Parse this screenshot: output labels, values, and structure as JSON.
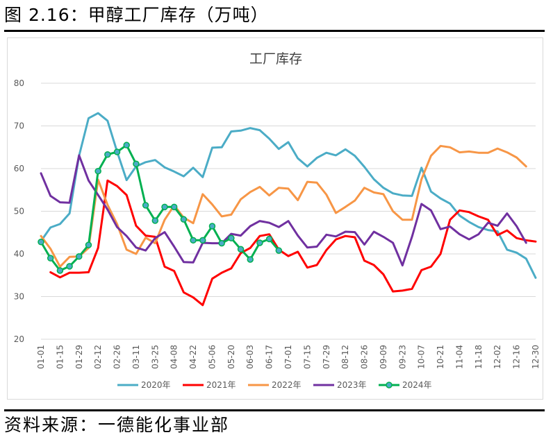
{
  "header": {
    "figure_title": "图 2.16：甲醇工厂库存（万吨）"
  },
  "footer": {
    "source": "资料来源：一德能化事业部"
  },
  "chart_data": {
    "type": "line",
    "title": "工厂库存",
    "xlabel": "",
    "ylabel": "",
    "ylim": [
      20,
      80
    ],
    "yticks": [
      20,
      30,
      40,
      50,
      60,
      70,
      80
    ],
    "grid": true,
    "legend_position": "bottom",
    "categories": [
      "01-01",
      "01-08",
      "01-15",
      "01-22",
      "01-29",
      "02-05",
      "02-12",
      "02-19",
      "02-26",
      "03-04",
      "03-11",
      "03-18",
      "03-25",
      "04-01",
      "04-08",
      "04-15",
      "04-22",
      "04-29",
      "05-06",
      "05-13",
      "05-20",
      "05-27",
      "06-03",
      "06-10",
      "06-17",
      "06-24",
      "07-01",
      "07-08",
      "07-15",
      "07-22",
      "07-29",
      "08-05",
      "08-12",
      "08-19",
      "08-26",
      "09-02",
      "09-09",
      "09-16",
      "09-23",
      "09-30",
      "10-07",
      "10-14",
      "10-21",
      "10-28",
      "11-04",
      "11-11",
      "11-18",
      "11-25",
      "12-02",
      "12-09",
      "12-16",
      "12-23",
      "12-30"
    ],
    "tick_labels": [
      "01-01",
      "01-15",
      "01-29",
      "02-12",
      "02-26",
      "03-11",
      "03-25",
      "04-08",
      "04-22",
      "05-06",
      "05-20",
      "06-03",
      "06-17",
      "07-01",
      "07-15",
      "07-29",
      "08-12",
      "08-26",
      "09-09",
      "09-23",
      "10-07",
      "10-21",
      "11-04",
      "11-18",
      "12-02",
      "12-16",
      "12-30"
    ],
    "series": [
      {
        "name": "2020年",
        "color": "#4bacc6",
        "markers": false,
        "values": [
          43,
          46.2,
          47,
          49.5,
          63,
          71.8,
          73,
          71.2,
          64,
          57.3,
          60.5,
          61.5,
          62,
          60.3,
          59.3,
          58.2,
          60.2,
          58,
          64.9,
          65,
          68.7,
          68.9,
          69.5,
          69,
          67,
          64.6,
          66.2,
          62.4,
          60.5,
          62.5,
          63.7,
          63.1,
          64.5,
          63,
          60.4,
          57.5,
          55.5,
          54.2,
          53.7,
          53.6,
          60.2,
          54.6,
          53,
          51.8,
          49,
          47.5,
          46.3,
          45.6,
          45.3,
          41,
          40.3,
          38.9,
          34.4
        ]
      },
      {
        "name": "2021年",
        "color": "#ff0000",
        "markers": false,
        "values": [
          null,
          35.7,
          34.5,
          35.6,
          35.6,
          35.7,
          41.4,
          57.2,
          55.9,
          53.8,
          46.6,
          44.3,
          44,
          37,
          36,
          31,
          29.8,
          28,
          34.2,
          35.6,
          36.6,
          40.2,
          41.4,
          44.2,
          44.6,
          41,
          39.5,
          40.5,
          36.8,
          37.4,
          40.9,
          43.4,
          44.2,
          43.9,
          38.4,
          37.4,
          35.2,
          31.2,
          31.4,
          31.8,
          36.2,
          37,
          40,
          48,
          50.2,
          49.8,
          48.8,
          48,
          44.4,
          45.5,
          43.7,
          43.2,
          42.9
        ]
      },
      {
        "name": "2022年",
        "color": "#f79646",
        "markers": false,
        "values": [
          44.2,
          41.2,
          37,
          39.3,
          39.4,
          41.4,
          57.4,
          51.5,
          47,
          41,
          40,
          43.8,
          42.5,
          48,
          51.4,
          48.5,
          47.2,
          54,
          51.6,
          48.8,
          49.2,
          52.8,
          54.5,
          55.7,
          53.7,
          55.5,
          55.3,
          52.6,
          56.9,
          56.7,
          53.9,
          49.6,
          51,
          52.5,
          55.5,
          54.4,
          54,
          50,
          48,
          48,
          57.5,
          63,
          65.3,
          65,
          63.8,
          64,
          63.7,
          63.7,
          64.7,
          63.8,
          62.6,
          60.5,
          null
        ]
      },
      {
        "name": "2023年",
        "color": "#7030a0",
        "markers": false,
        "values": [
          58.9,
          53.6,
          52.1,
          52,
          63.1,
          57.2,
          53.8,
          50.4,
          46.3,
          44.2,
          41.5,
          40.8,
          43.7,
          45.1,
          41.7,
          38.1,
          38,
          42.6,
          42.5,
          42.5,
          44.7,
          44.3,
          46.5,
          47.7,
          47.3,
          46.3,
          47.7,
          44.3,
          41.5,
          41.7,
          44.5,
          44.1,
          45.2,
          45.1,
          42.2,
          45.2,
          44,
          42.6,
          37.3,
          44,
          51.7,
          50.2,
          45.8,
          46.4,
          44.6,
          43.4,
          44.6,
          47.3,
          46.6,
          49.5,
          46.5,
          42.6,
          null
        ]
      },
      {
        "name": "2024年",
        "color": "#00b050",
        "markers": true,
        "values": [
          42.8,
          39,
          36.1,
          37.1,
          39.4,
          42.1,
          59.4,
          63.3,
          63.9,
          65.5,
          61.1,
          51.4,
          47.8,
          51,
          51,
          48.1,
          43.2,
          43.2,
          46.5,
          42.5,
          43.7,
          41.1,
          38.7,
          42.6,
          43.5,
          40.8,
          null,
          null,
          null,
          null,
          null,
          null,
          null,
          null,
          null,
          null,
          null,
          null,
          null,
          null,
          null,
          null,
          null,
          null,
          null,
          null,
          null,
          null,
          null,
          null,
          null,
          null,
          null
        ]
      }
    ]
  }
}
